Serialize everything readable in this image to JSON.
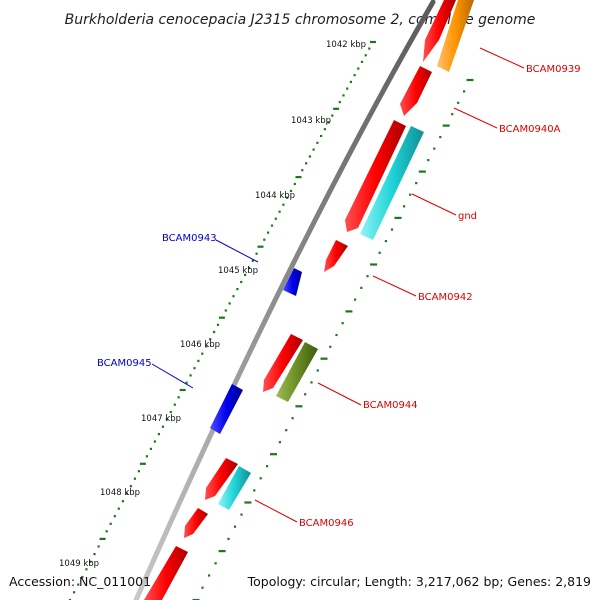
{
  "title": "Burkholderia cenocepacia J2315 chromosome 2, complete genome",
  "footer": {
    "accession": "Accession: NC_011001",
    "summary": "Topology: circular; Length: 3,217,062 bp; Genes: 2,819"
  },
  "scale_labels": [
    "1042 kbp",
    "1043 kbp",
    "1044 kbp",
    "1045 kbp",
    "1046 kbp",
    "1047 kbp",
    "1048 kbp",
    "1049 kbp"
  ],
  "gene_labels": [
    {
      "text": "BCAM0939",
      "color": "#dd0000"
    },
    {
      "text": "BCAM0940A",
      "color": "#dd0000"
    },
    {
      "text": "gnd",
      "color": "#dd0000"
    },
    {
      "text": "BCAM0942",
      "color": "#dd0000"
    },
    {
      "text": "BCAM0944",
      "color": "#dd0000"
    },
    {
      "text": "BCAM0946",
      "color": "#dd0000"
    },
    {
      "text": "BCAM0943",
      "color": "#0000cc"
    },
    {
      "text": "BCAM0945",
      "color": "#0000cc"
    }
  ],
  "colors": {
    "backbone": "#8a8a8a",
    "forward_gene": "#ff0000",
    "reverse_gene": "#0000ee",
    "cds_cyan": "#1fd3d8",
    "cds_orange": "#ff9500",
    "cds_olive": "#6b8e23",
    "tick_green": "#1a7a1a"
  }
}
